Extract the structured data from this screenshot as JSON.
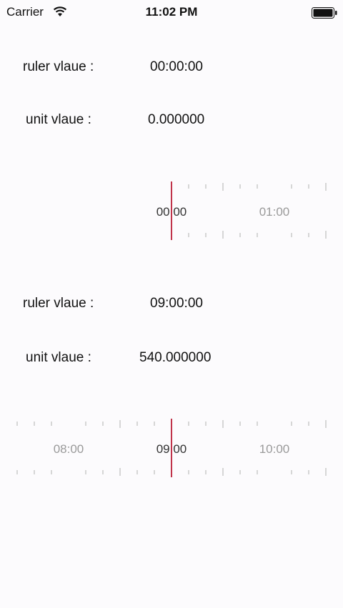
{
  "status_bar": {
    "carrier": "Carrier",
    "time": "11:02 PM",
    "wifi_icon": "wifi-icon",
    "battery_icon": "battery-icon"
  },
  "section1": {
    "ruler_label": "ruler vlaue :",
    "ruler_value": "00:00:00",
    "unit_label": "unit vlaue :",
    "unit_value": "0.000000",
    "ticks": {
      "center": "00:00",
      "right": "01:00"
    }
  },
  "section2": {
    "ruler_label": "ruler vlaue :",
    "ruler_value": "09:00:00",
    "unit_label": "unit vlaue :",
    "unit_value": "540.000000",
    "ticks": {
      "left": "08:00",
      "center": "09:00",
      "right": "10:00"
    }
  },
  "colors": {
    "indicator": "#c0334a",
    "tick": "#d4d4d4",
    "tick_label_faded": "#9a9a9a",
    "tick_label_active": "#333333",
    "background": "#fcfbfd"
  }
}
